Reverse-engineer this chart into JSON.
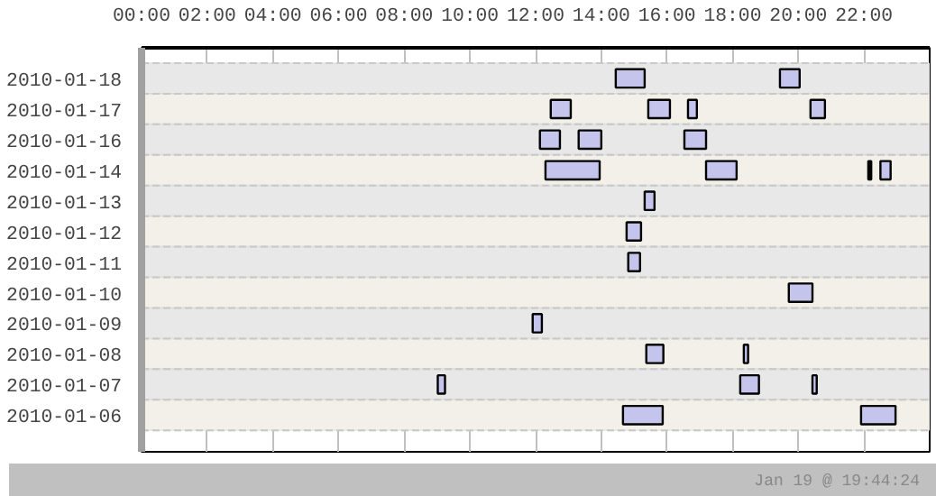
{
  "chart_data": {
    "type": "bar",
    "orientation": "horizontal",
    "categories": [
      "2010-01-18",
      "2010-01-17",
      "2010-01-16",
      "2010-01-14",
      "2010-01-13",
      "2010-01-12",
      "2010-01-11",
      "2010-01-10",
      "2010-01-09",
      "2010-01-08",
      "2010-01-07",
      "2010-01-06"
    ],
    "series": [
      {
        "color": "#c4c4ec",
        "base": [
          14.44,
          12.46,
          12.13,
          12.3,
          15.32,
          14.77,
          14.82,
          19.71,
          11.91,
          15.37,
          9.02,
          14.66
        ],
        "values": [
          0.88,
          0.61,
          0.61,
          1.65,
          0.3,
          0.44,
          0.36,
          0.72,
          0.28,
          0.52,
          0.22,
          1.21
        ]
      },
      {
        "color": "#c4c4ec",
        "base": [
          19.44,
          15.43,
          13.31,
          17.19,
          null,
          null,
          null,
          null,
          null,
          18.34,
          18.23,
          21.91
        ],
        "values": [
          0.6,
          0.66,
          0.69,
          0.93,
          null,
          null,
          null,
          null,
          null,
          0.13,
          0.57,
          1.05
        ]
      },
      {
        "color": "#c4c4ec",
        "base": [
          null,
          16.64,
          16.53,
          22.5,
          null,
          null,
          null,
          null,
          null,
          null,
          20.43,
          null
        ],
        "values": [
          null,
          0.27,
          0.66,
          0.31,
          null,
          null,
          null,
          null,
          null,
          null,
          0.13,
          null
        ]
      },
      {
        "color": "#c4c4ec",
        "base": [
          null,
          20.37,
          null,
          null,
          null,
          null,
          null,
          null,
          null,
          null,
          null,
          null
        ],
        "values": [
          null,
          0.44,
          null,
          null,
          null,
          null,
          null,
          null,
          null,
          null,
          null,
          null
        ]
      },
      {
        "color": "#000000",
        "base": [
          null,
          null,
          null,
          22.13,
          null,
          null,
          null,
          null,
          null,
          null,
          null,
          null
        ],
        "values": [
          null,
          null,
          null,
          0.09,
          null,
          null,
          null,
          null,
          null,
          null,
          null,
          null
        ]
      }
    ],
    "xlim": [
      0,
      24
    ],
    "xticks": [
      {
        "value": 0,
        "label": "00:00"
      },
      {
        "value": 2,
        "label": "02:00"
      },
      {
        "value": 4,
        "label": "04:00"
      },
      {
        "value": 6,
        "label": "06:00"
      },
      {
        "value": 8,
        "label": "08:00"
      },
      {
        "value": 10,
        "label": "10:00"
      },
      {
        "value": 12,
        "label": "12:00"
      },
      {
        "value": 14,
        "label": "14:00"
      },
      {
        "value": 16,
        "label": "16:00"
      },
      {
        "value": 18,
        "label": "18:00"
      },
      {
        "value": 20,
        "label": "20:00"
      },
      {
        "value": 22,
        "label": "22:00"
      }
    ],
    "grid": "x",
    "annotations": [
      "Jan 19 @ 19:44:24"
    ]
  }
}
